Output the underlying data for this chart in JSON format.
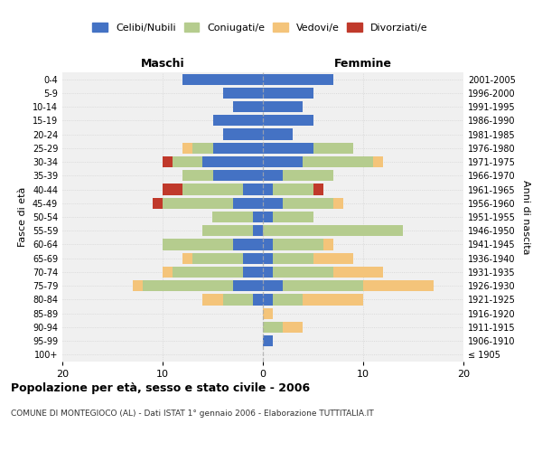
{
  "age_groups": [
    "100+",
    "95-99",
    "90-94",
    "85-89",
    "80-84",
    "75-79",
    "70-74",
    "65-69",
    "60-64",
    "55-59",
    "50-54",
    "45-49",
    "40-44",
    "35-39",
    "30-34",
    "25-29",
    "20-24",
    "15-19",
    "10-14",
    "5-9",
    "0-4"
  ],
  "birth_years": [
    "≤ 1905",
    "1906-1910",
    "1911-1915",
    "1916-1920",
    "1921-1925",
    "1926-1930",
    "1931-1935",
    "1936-1940",
    "1941-1945",
    "1946-1950",
    "1951-1955",
    "1956-1960",
    "1961-1965",
    "1966-1970",
    "1971-1975",
    "1976-1980",
    "1981-1985",
    "1986-1990",
    "1991-1995",
    "1996-2000",
    "2001-2005"
  ],
  "males": {
    "celibi": [
      0,
      0,
      0,
      0,
      1,
      3,
      2,
      2,
      3,
      1,
      1,
      3,
      2,
      5,
      6,
      5,
      4,
      5,
      3,
      4,
      8
    ],
    "coniugati": [
      0,
      0,
      0,
      0,
      3,
      9,
      7,
      5,
      7,
      5,
      4,
      7,
      6,
      3,
      3,
      2,
      0,
      0,
      0,
      0,
      0
    ],
    "vedovi": [
      0,
      0,
      0,
      0,
      2,
      1,
      1,
      1,
      0,
      0,
      0,
      0,
      0,
      0,
      0,
      1,
      0,
      0,
      0,
      0,
      0
    ],
    "divorziati": [
      0,
      0,
      0,
      0,
      0,
      0,
      0,
      0,
      0,
      0,
      0,
      1,
      2,
      0,
      1,
      0,
      0,
      0,
      0,
      0,
      0
    ]
  },
  "females": {
    "nubili": [
      0,
      1,
      0,
      0,
      1,
      2,
      1,
      1,
      1,
      0,
      1,
      2,
      1,
      2,
      4,
      5,
      3,
      5,
      4,
      5,
      7
    ],
    "coniugate": [
      0,
      0,
      2,
      0,
      3,
      8,
      6,
      4,
      5,
      14,
      4,
      5,
      4,
      5,
      7,
      4,
      0,
      0,
      0,
      0,
      0
    ],
    "vedove": [
      0,
      0,
      2,
      1,
      6,
      7,
      5,
      4,
      1,
      0,
      0,
      1,
      0,
      0,
      1,
      0,
      0,
      0,
      0,
      0,
      0
    ],
    "divorziate": [
      0,
      0,
      0,
      0,
      0,
      0,
      0,
      0,
      0,
      0,
      0,
      0,
      1,
      0,
      0,
      0,
      0,
      0,
      0,
      0,
      0
    ]
  },
  "colors": {
    "celibi": "#4472C4",
    "coniugati": "#b5cc8e",
    "vedovi": "#f4c47a",
    "divorziati": "#c0392b"
  },
  "xlim": 20,
  "title": "Popolazione per età, sesso e stato civile - 2006",
  "subtitle": "COMUNE DI MONTEGIOCO (AL) - Dati ISTAT 1° gennaio 2006 - Elaborazione TUTTITALIA.IT",
  "ylabel_left": "Fasce di età",
  "ylabel_right": "Anni di nascita",
  "xlabel_left": "Maschi",
  "xlabel_right": "Femmine"
}
